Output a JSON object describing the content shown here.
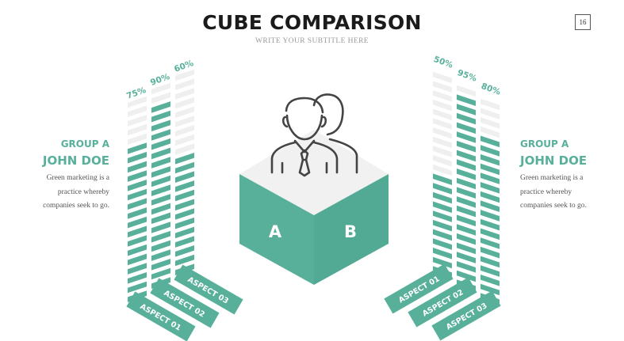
{
  "header": {
    "title": "CUBE COMPARISON",
    "subtitle": "WRITE YOUR SUBTITLE HERE",
    "page_number": "16"
  },
  "left_panel": {
    "group": "GROUP A",
    "name": "JOHN DOE",
    "description": [
      "Green marketing is a",
      "practice whereby",
      "companies seek to go."
    ]
  },
  "right_panel": {
    "group": "GROUP A",
    "name": "JOHN DOE",
    "description": [
      "Green marketing is a",
      "practice whereby",
      "companies seek to go."
    ]
  },
  "cube": {
    "left_label": "A",
    "right_label": "B",
    "icon": "two-people-icon"
  },
  "left_bars": [
    {
      "aspect": "ASPECT 01",
      "value": 75,
      "label": "75%"
    },
    {
      "aspect": "ASPECT 02",
      "value": 90,
      "label": "90%"
    },
    {
      "aspect": "ASPECT 03",
      "value": 60,
      "label": "60%"
    }
  ],
  "right_bars": [
    {
      "aspect": "ASPECT 01",
      "value": 50,
      "label": "50%"
    },
    {
      "aspect": "ASPECT 02",
      "value": 95,
      "label": "95%"
    },
    {
      "aspect": "ASPECT 03",
      "value": 80,
      "label": "80%"
    }
  ],
  "colors": {
    "accent": "#58b09b",
    "accent_dark": "#3f9983",
    "empty": "#efefef",
    "text": "#1b1b1b"
  }
}
